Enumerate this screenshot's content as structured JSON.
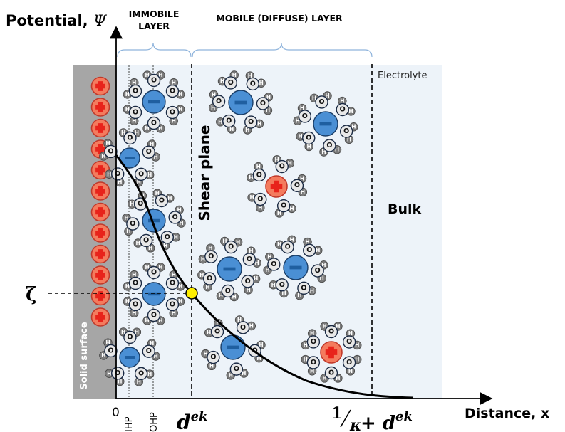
{
  "axes": {
    "y_label_prefix": "Potential, ",
    "y_label_symbol": "Ψ",
    "x_label": "Distance, x",
    "origin": "0",
    "zeta": "ζ"
  },
  "layers": {
    "immobile_line1": "IMMOBILE",
    "immobile_line2": "LAYER",
    "mobile": "MOBILE (DIFFUSE) LAYER"
  },
  "labels": {
    "electrolyte": "Electrolyte",
    "bulk": "Bulk",
    "shear_plane": "Shear plane",
    "solid_surface": "Solid surface",
    "ihp": "IHP",
    "ohp": "OHP",
    "d_ek_base": "d",
    "d_ek_sup": "ek",
    "debye_num": "1",
    "debye_den": "κ",
    "debye_plus": " + d",
    "debye_sup": "ek"
  },
  "glyphs": {
    "plus": "+",
    "minus": "–",
    "oxygen": "O",
    "hydrogen": "H"
  },
  "colors": {
    "solid": "#a6a6a6",
    "electrolyte_bg": "#edf3f9",
    "cation": "#f47b5e",
    "cation_ring": "#c0392b",
    "cross": "#e8231b",
    "anion": "#4a8fd4",
    "anion_bar": "#1f5fa0",
    "zeta_point": "#ffee00",
    "brace": "#8fb4dc"
  }
}
